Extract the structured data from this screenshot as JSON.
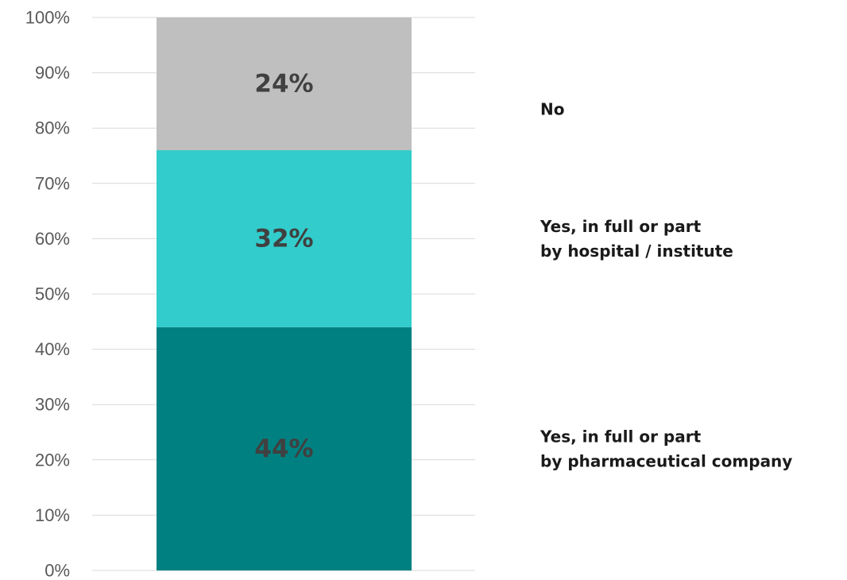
{
  "chart_data": {
    "type": "bar",
    "stacked": true,
    "categories": [
      ""
    ],
    "yticks": [
      "0%",
      "10%",
      "20%",
      "30%",
      "40%",
      "50%",
      "60%",
      "70%",
      "80%",
      "90%",
      "100%"
    ],
    "ylim": [
      0,
      100
    ],
    "grid": true,
    "legend_position": "right",
    "series": [
      {
        "name": "Yes, in full or part|by pharmaceutical company",
        "values": [
          44
        ],
        "label": "44%",
        "color": "#008080"
      },
      {
        "name": "Yes, in full or part|by hospital / institute",
        "values": [
          32
        ],
        "label": "32%",
        "color": "#33CCCC"
      },
      {
        "name": "No",
        "values": [
          24
        ],
        "label": "24%",
        "color": "#BFBFBF"
      }
    ]
  }
}
